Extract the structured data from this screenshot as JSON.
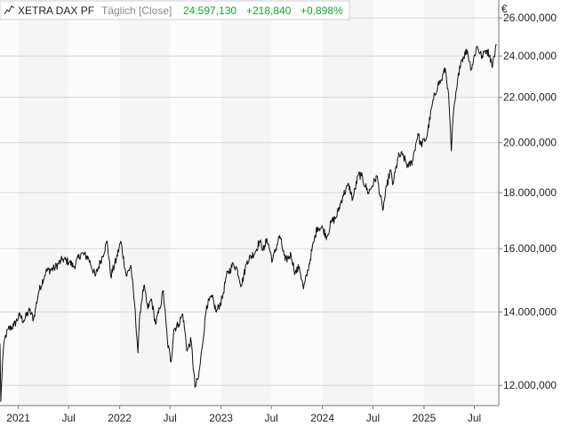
{
  "header": {
    "name": "XETRA DAX PF",
    "period": "Täglich [Close]",
    "last": "24.597,130",
    "change_abs": "+218,840",
    "change_pct": "+0,898%",
    "up_color": "#17a32a"
  },
  "icons": {
    "chart_type": "line-chart-icon"
  },
  "currency": "€",
  "chart_data": {
    "type": "line",
    "title": "",
    "xlabel": "",
    "ylabel": "",
    "yscale": "log",
    "ylim": [
      11500000,
      27000000
    ],
    "xlim": [
      "2020-10-27",
      "2025-09-27"
    ],
    "grid": true,
    "y_ticks": [
      {
        "value": 12000000,
        "label": "12.000,000"
      },
      {
        "value": 14000000,
        "label": "14.000,000"
      },
      {
        "value": 16000000,
        "label": "16.000,000"
      },
      {
        "value": 18000000,
        "label": "18.000,000"
      },
      {
        "value": 20000000,
        "label": "20.000,000"
      },
      {
        "value": 22000000,
        "label": "22.000,000"
      },
      {
        "value": 24000000,
        "label": "24.000,000"
      },
      {
        "value": 26000000,
        "label": "26.000,000"
      }
    ],
    "x_ticks": [
      {
        "date": "2021-01-01",
        "label": "2021"
      },
      {
        "date": "2021-07-01",
        "label": "Jul"
      },
      {
        "date": "2022-01-01",
        "label": "2022"
      },
      {
        "date": "2022-07-01",
        "label": "Jul"
      },
      {
        "date": "2023-01-01",
        "label": "2023"
      },
      {
        "date": "2023-07-01",
        "label": "Jul"
      },
      {
        "date": "2024-01-01",
        "label": "2024"
      },
      {
        "date": "2024-07-01",
        "label": "Jul"
      },
      {
        "date": "2025-01-01",
        "label": "2025"
      },
      {
        "date": "2025-07-01",
        "label": "Jul"
      }
    ],
    "series": [
      {
        "color": "#111111",
        "points": [
          [
            "2020-10-27",
            13100000
          ],
          [
            "2020-10-30",
            11600000
          ],
          [
            "2020-11-05",
            12600000
          ],
          [
            "2020-11-12",
            13200000
          ],
          [
            "2020-11-25",
            13500000
          ],
          [
            "2020-12-15",
            13600000
          ],
          [
            "2021-01-05",
            13900000
          ],
          [
            "2021-01-20",
            13750000
          ],
          [
            "2021-02-10",
            14050000
          ],
          [
            "2021-02-25",
            13800000
          ],
          [
            "2021-03-15",
            14600000
          ],
          [
            "2021-04-10",
            15250000
          ],
          [
            "2021-05-10",
            15350000
          ],
          [
            "2021-06-10",
            15650000
          ],
          [
            "2021-07-05",
            15550000
          ],
          [
            "2021-07-20",
            15400000
          ],
          [
            "2021-08-15",
            15850000
          ],
          [
            "2021-09-10",
            15700000
          ],
          [
            "2021-10-05",
            15100000
          ],
          [
            "2021-10-25",
            15600000
          ],
          [
            "2021-11-17",
            16250000
          ],
          [
            "2021-11-30",
            15100000
          ],
          [
            "2021-12-20",
            15650000
          ],
          [
            "2022-01-05",
            16250000
          ],
          [
            "2022-01-25",
            15100000
          ],
          [
            "2022-02-10",
            15450000
          ],
          [
            "2022-02-24",
            14200000
          ],
          [
            "2022-03-08",
            12850000
          ],
          [
            "2022-03-15",
            14000000
          ],
          [
            "2022-03-29",
            14800000
          ],
          [
            "2022-04-12",
            14100000
          ],
          [
            "2022-04-25",
            14400000
          ],
          [
            "2022-05-10",
            13650000
          ],
          [
            "2022-05-25",
            14100000
          ],
          [
            "2022-06-07",
            14650000
          ],
          [
            "2022-06-22",
            13150000
          ],
          [
            "2022-07-05",
            12600000
          ],
          [
            "2022-07-15",
            13500000
          ],
          [
            "2022-08-01",
            13650000
          ],
          [
            "2022-08-16",
            13950000
          ],
          [
            "2022-09-01",
            12900000
          ],
          [
            "2022-09-15",
            13200000
          ],
          [
            "2022-09-29",
            11950000
          ],
          [
            "2022-10-12",
            12200000
          ],
          [
            "2022-10-25",
            13000000
          ],
          [
            "2022-11-10",
            14200000
          ],
          [
            "2022-11-30",
            14450000
          ],
          [
            "2022-12-15",
            14000000
          ],
          [
            "2023-01-05",
            14400000
          ],
          [
            "2023-01-20",
            15100000
          ],
          [
            "2023-02-15",
            15500000
          ],
          [
            "2023-03-01",
            15300000
          ],
          [
            "2023-03-15",
            14800000
          ],
          [
            "2023-04-05",
            15600000
          ],
          [
            "2023-05-05",
            15900000
          ],
          [
            "2023-05-19",
            16250000
          ],
          [
            "2023-06-05",
            15950000
          ],
          [
            "2023-06-15",
            16350000
          ],
          [
            "2023-07-05",
            15600000
          ],
          [
            "2023-07-31",
            16450000
          ],
          [
            "2023-08-20",
            15600000
          ],
          [
            "2023-09-10",
            15800000
          ],
          [
            "2023-09-25",
            15200000
          ],
          [
            "2023-10-10",
            15400000
          ],
          [
            "2023-10-25",
            14700000
          ],
          [
            "2023-11-10",
            15300000
          ],
          [
            "2023-11-30",
            16200000
          ],
          [
            "2023-12-14",
            16750000
          ],
          [
            "2024-01-02",
            16700000
          ],
          [
            "2024-01-17",
            16400000
          ],
          [
            "2024-02-01",
            16900000
          ],
          [
            "2024-02-20",
            17100000
          ],
          [
            "2024-03-15",
            17900000
          ],
          [
            "2024-04-05",
            18300000
          ],
          [
            "2024-04-19",
            17750000
          ],
          [
            "2024-05-10",
            18700000
          ],
          [
            "2024-05-20",
            18650000
          ],
          [
            "2024-06-14",
            18000000
          ],
          [
            "2024-06-28",
            18250000
          ],
          [
            "2024-07-15",
            18650000
          ],
          [
            "2024-08-05",
            17350000
          ],
          [
            "2024-08-20",
            18250000
          ],
          [
            "2024-09-02",
            18900000
          ],
          [
            "2024-09-10",
            18300000
          ],
          [
            "2024-09-30",
            19400000
          ],
          [
            "2024-10-15",
            19500000
          ],
          [
            "2024-11-05",
            19000000
          ],
          [
            "2024-11-20",
            19250000
          ],
          [
            "2024-12-10",
            20400000
          ],
          [
            "2024-12-20",
            19900000
          ],
          [
            "2025-01-10",
            20200000
          ],
          [
            "2025-01-31",
            21700000
          ],
          [
            "2025-02-20",
            22600000
          ],
          [
            "2025-03-05",
            22800000
          ],
          [
            "2025-03-18",
            23400000
          ],
          [
            "2025-03-28",
            22400000
          ],
          [
            "2025-04-04",
            21000000
          ],
          [
            "2025-04-09",
            19650000
          ],
          [
            "2025-04-17",
            21300000
          ],
          [
            "2025-04-30",
            22500000
          ],
          [
            "2025-05-09",
            23500000
          ],
          [
            "2025-05-16",
            23800000
          ],
          [
            "2025-06-05",
            24300000
          ],
          [
            "2025-06-20",
            23350000
          ],
          [
            "2025-07-10",
            24500000
          ],
          [
            "2025-07-31",
            23900000
          ],
          [
            "2025-08-05",
            24200000
          ],
          [
            "2025-08-14",
            24300000
          ],
          [
            "2025-08-26",
            24050000
          ],
          [
            "2025-09-02",
            23500000
          ],
          [
            "2025-09-10",
            24000000
          ],
          [
            "2025-09-19",
            24597130
          ]
        ]
      }
    ]
  }
}
